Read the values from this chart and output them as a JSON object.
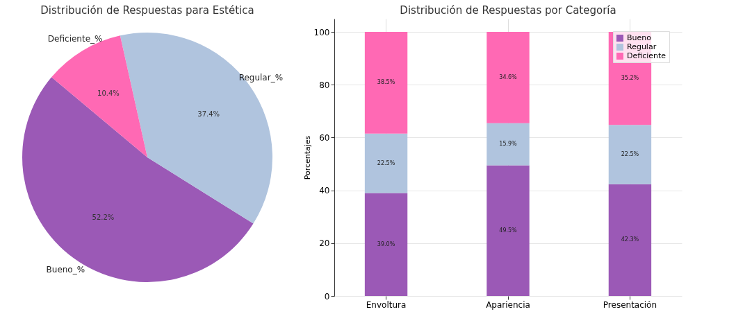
{
  "chart_data": [
    {
      "type": "pie",
      "title": "Distribución de Respuestas para Estética",
      "categories": [
        "Bueno_%",
        "Regular_%",
        "Deficiente_%"
      ],
      "values": [
        52.2,
        37.4,
        10.4
      ],
      "colors": [
        "#9b59b6",
        "#b0c4de",
        "#ff69b4"
      ],
      "value_labels": [
        "52.2%",
        "37.4%",
        "10.4%"
      ]
    },
    {
      "type": "bar",
      "title": "Distribución de Respuestas por Categoría",
      "ylabel": "Porcentajes",
      "categories": [
        "Envoltura",
        "Apariencia",
        "Presentación"
      ],
      "stacked": true,
      "ylim": [
        0,
        105
      ],
      "yticks": [
        0,
        20,
        40,
        60,
        80,
        100
      ],
      "grid": true,
      "legend": "top right",
      "series": [
        {
          "name": "Bueno",
          "color": "#9b59b6",
          "values": [
            39.0,
            49.5,
            42.3
          ],
          "value_labels": [
            "39.0%",
            "49.5%",
            "42.3%"
          ]
        },
        {
          "name": "Regular",
          "color": "#b0c4de",
          "values": [
            22.5,
            15.9,
            22.5
          ],
          "value_labels": [
            "22.5%",
            "15.9%",
            "22.5%"
          ]
        },
        {
          "name": "Deficiente",
          "color": "#ff69b4",
          "values": [
            38.5,
            34.6,
            35.2
          ],
          "value_labels": [
            "38.5%",
            "34.6%",
            "35.2%"
          ]
        }
      ]
    }
  ]
}
